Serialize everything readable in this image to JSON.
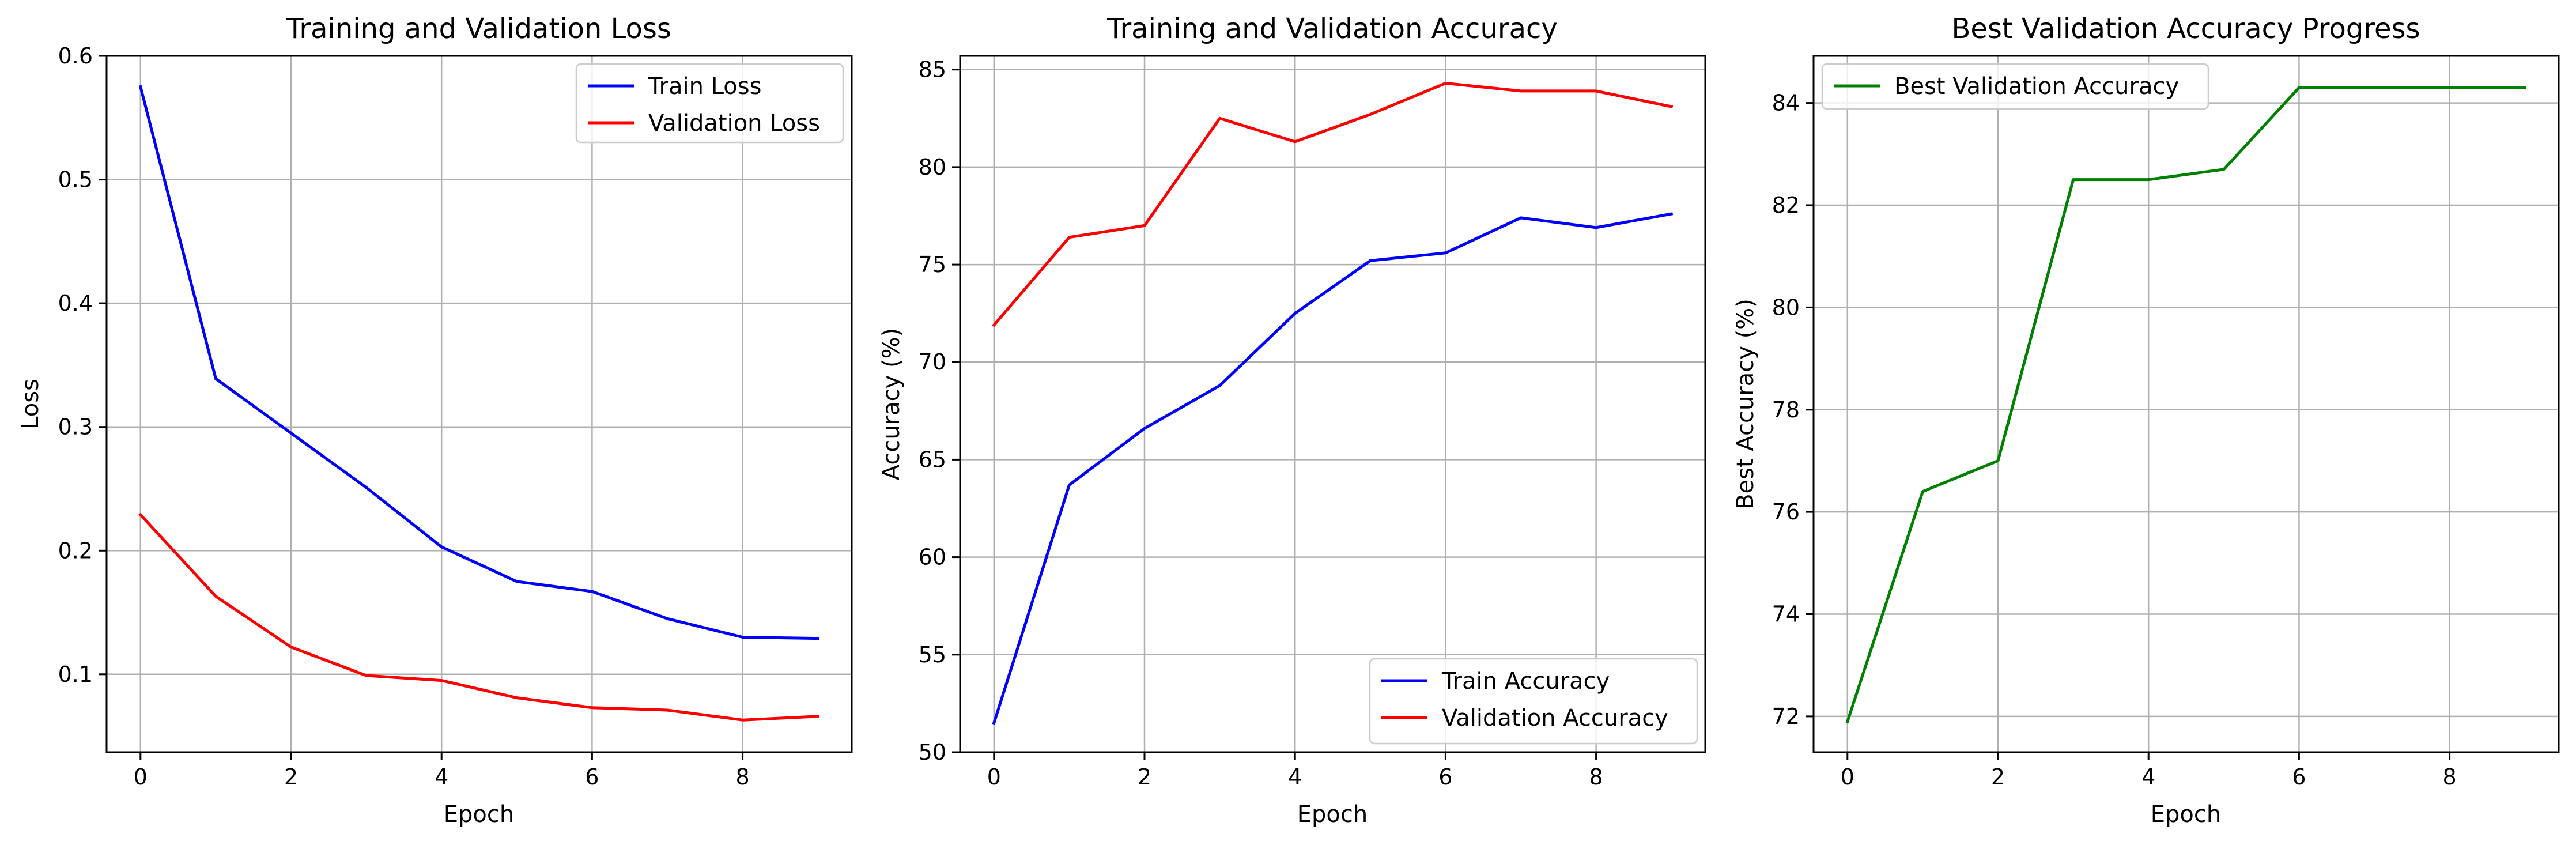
{
  "chart_data": [
    {
      "type": "line",
      "title": "Training and Validation Loss",
      "xlabel": "Epoch",
      "ylabel": "Loss",
      "xlim": [
        -0.45,
        9.45
      ],
      "ylim": [
        0.037,
        0.6
      ],
      "xticks": [
        0,
        2,
        4,
        6,
        8
      ],
      "yticks": [
        0.1,
        0.2,
        0.3,
        0.4,
        0.5,
        0.6
      ],
      "ytick_labels": [
        "0.1",
        "0.2",
        "0.3",
        "0.4",
        "0.5",
        "0.6"
      ],
      "grid": true,
      "legend_position": "upper right",
      "x": [
        0,
        1,
        2,
        3,
        4,
        5,
        6,
        7,
        8,
        9
      ],
      "series": [
        {
          "name": "Train Loss",
          "color": "#0000ff",
          "values": [
            0.575,
            0.339,
            0.295,
            0.251,
            0.203,
            0.175,
            0.167,
            0.145,
            0.13,
            0.129
          ]
        },
        {
          "name": "Validation Loss",
          "color": "#ff0000",
          "values": [
            0.229,
            0.163,
            0.122,
            0.099,
            0.095,
            0.081,
            0.073,
            0.071,
            0.063,
            0.066
          ]
        }
      ]
    },
    {
      "type": "line",
      "title": "Training and Validation Accuracy",
      "xlabel": "Epoch",
      "ylabel": "Accuracy (%)",
      "xlim": [
        -0.45,
        9.45
      ],
      "ylim": [
        50.0,
        85.7
      ],
      "xticks": [
        0,
        2,
        4,
        6,
        8
      ],
      "yticks": [
        50,
        55,
        60,
        65,
        70,
        75,
        80,
        85
      ],
      "ytick_labels": [
        "50",
        "55",
        "60",
        "65",
        "70",
        "75",
        "80",
        "85"
      ],
      "grid": true,
      "legend_position": "lower right",
      "x": [
        0,
        1,
        2,
        3,
        4,
        5,
        6,
        7,
        8,
        9
      ],
      "series": [
        {
          "name": "Train Accuracy",
          "color": "#0000ff",
          "values": [
            51.5,
            63.7,
            66.6,
            68.8,
            72.5,
            75.2,
            75.6,
            77.4,
            76.9,
            77.6
          ]
        },
        {
          "name": "Validation Accuracy",
          "color": "#ff0000",
          "values": [
            71.9,
            76.4,
            77.0,
            82.5,
            81.3,
            82.7,
            84.3,
            83.9,
            83.9,
            83.1
          ]
        }
      ]
    },
    {
      "type": "line",
      "title": "Best Validation Accuracy Progress",
      "xlabel": "Epoch",
      "ylabel": "Best Accuracy (%)",
      "xlim": [
        -0.45,
        9.45
      ],
      "ylim": [
        71.3,
        84.92
      ],
      "xticks": [
        0,
        2,
        4,
        6,
        8
      ],
      "yticks": [
        72,
        74,
        76,
        78,
        80,
        82,
        84
      ],
      "ytick_labels": [
        "72",
        "74",
        "76",
        "78",
        "80",
        "82",
        "84"
      ],
      "grid": true,
      "legend_position": "upper left",
      "x": [
        0,
        1,
        2,
        3,
        4,
        5,
        6,
        7,
        8,
        9
      ],
      "series": [
        {
          "name": "Best Validation Accuracy",
          "color": "#008000",
          "values": [
            71.9,
            76.4,
            77.0,
            82.5,
            82.5,
            82.7,
            84.3,
            84.3,
            84.3,
            84.3
          ]
        }
      ]
    }
  ]
}
